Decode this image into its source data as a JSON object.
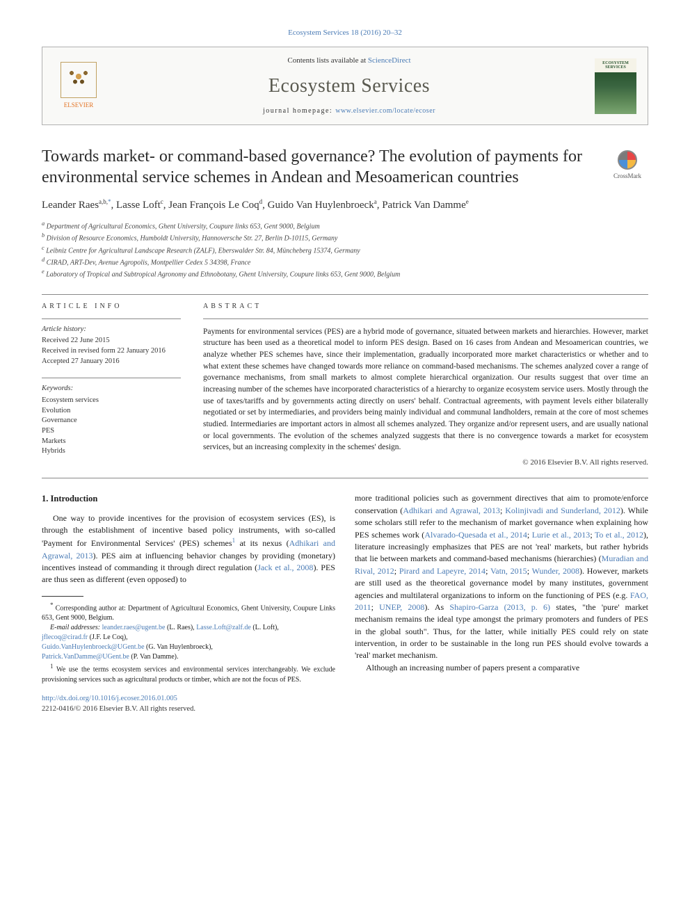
{
  "header": {
    "top_link": "Ecosystem Services 18 (2016) 20–32",
    "contents_prefix": "Contents lists available at ",
    "contents_link": "ScienceDirect",
    "journal_name": "Ecosystem Services",
    "homepage_prefix": "journal homepage: ",
    "homepage_url": "www.elsevier.com/locate/ecoser",
    "elsevier_label": "ELSEVIER",
    "cover_label": "ECOSYSTEM SERVICES"
  },
  "article": {
    "title": "Towards market- or command-based governance? The evolution of payments for environmental service schemes in Andean and Mesoamerican countries",
    "crossmark_label": "CrossMark"
  },
  "authors": {
    "a1": {
      "name": "Leander Raes",
      "sup": "a,b,",
      "corr": "*"
    },
    "a2": {
      "name": "Lasse Loft",
      "sup": "c"
    },
    "a3": {
      "name": "Jean François Le Coq",
      "sup": "d"
    },
    "a4": {
      "name": "Guido Van Huylenbroeck",
      "sup": "a"
    },
    "a5": {
      "name": "Patrick Van Damme",
      "sup": "e"
    }
  },
  "affiliations": {
    "a": "Department of Agricultural Economics, Ghent University, Coupure links 653, Gent 9000, Belgium",
    "b": "Division of Resource Economics, Humboldt University, Hannoversche Str. 27, Berlin D-10115, Germany",
    "c": "Leibniz Centre for Agricultural Landscape Research (ZALF), Eberswalder Str. 84, Müncheberg 15374, Germany",
    "d": "CIRAD, ART-Dev, Avenue Agropolis, Montpellier Cedex 5 34398, France",
    "e": "Laboratory of Tropical and Subtropical Agronomy and Ethnobotany, Ghent University, Coupure links 653, Gent 9000, Belgium"
  },
  "info": {
    "section_label": "ARTICLE INFO",
    "history_heading": "Article history:",
    "received": "Received 22 June 2015",
    "revised": "Received in revised form 22 January 2016",
    "accepted": "Accepted 27 January 2016",
    "keywords_heading": "Keywords:",
    "keywords": [
      "Ecosystem services",
      "Evolution",
      "Governance",
      "PES",
      "Markets",
      "Hybrids"
    ]
  },
  "abstract": {
    "label": "ABSTRACT",
    "text": "Payments for environmental services (PES) are a hybrid mode of governance, situated between markets and hierarchies. However, market structure has been used as a theoretical model to inform PES design. Based on 16 cases from Andean and Mesoamerican countries, we analyze whether PES schemes have, since their implementation, gradually incorporated more market characteristics or whether and to what extent these schemes have changed towards more reliance on command-based mechanisms. The schemes analyzed cover a range of governance mechanisms, from small markets to almost complete hierarchical organization. Our results suggest that over time an increasing number of the schemes have incorporated characteristics of a hierarchy to organize ecosystem service users. Mostly through the use of taxes/tariffs and by governments acting directly on users' behalf. Contractual agreements, with payment levels either bilaterally negotiated or set by intermediaries, and providers being mainly individual and communal landholders, remain at the core of most schemes studied. Intermediaries are important actors in almost all schemes analyzed. They organize and/or represent users, and are usually national or local governments. The evolution of the schemes analyzed suggests that there is no convergence towards a market for ecosystem services, but an increasing complexity in the schemes' design.",
    "copyright": "© 2016 Elsevier B.V. All rights reserved."
  },
  "intro": {
    "heading": "1. Introduction",
    "p1_a": "One way to provide incentives for the provision of ecosystem services (ES), is through the establishment of incentive based policy instruments, with so-called 'Payment for Environmental Services' (PES) schemes",
    "p1_sup": "1",
    "p1_b": " at its nexus (",
    "p1_ref1": "Adhikari and Agrawal, 2013",
    "p1_c": "). PES aim at influencing behavior changes by providing (monetary) incentives instead of commanding it through direct regulation (",
    "p1_ref2": "Jack et al., 2008",
    "p1_d": "). PES are thus seen as different (even opposed) to",
    "p2_a": "more traditional policies such as government directives that aim to promote/enforce conservation (",
    "p2_ref1": "Adhikari and Agrawal, 2013",
    "p2_b": "; ",
    "p2_ref2": "Kolinjivadi and Sunderland, 2012",
    "p2_c": "). While some scholars still refer to the mechanism of market governance when explaining how PES schemes work (",
    "p2_ref3": "Alvarado-Quesada et al., 2014",
    "p2_d": "; ",
    "p2_ref4": "Lurie et al., 2013",
    "p2_e": "; ",
    "p2_ref5": "To et al., 2012",
    "p2_f": "), literature increasingly emphasizes that PES are not 'real' markets, but rather hybrids that lie between markets and command-based mechanisms (hierarchies) (",
    "p2_ref6": "Muradian and Rival, 2012",
    "p2_g": "; ",
    "p2_ref7": "Pirard and Lapeyre, 2014",
    "p2_h": "; ",
    "p2_ref8": "Vatn, 2015",
    "p2_i": "; ",
    "p2_ref9": "Wunder, 2008",
    "p2_j": "). However, markets are still used as the theoretical governance model by many institutes, government agencies and multilateral organizations to inform on the functioning of PES (e.g. ",
    "p2_ref10": "FAO, 2011",
    "p2_k": "; ",
    "p2_ref11": "UNEP, 2008",
    "p2_l": "). As ",
    "p2_ref12": "Shapiro-Garza (2013, p. 6)",
    "p2_m": " states, \"the 'pure' market mechanism remains the ideal type amongst the primary promoters and funders of PES in the global south\". Thus, for the latter, while initially PES could rely on state intervention, in order to be sustainable in the long run PES should evolve towards a 'real' market mechanism.",
    "p3": "Although an increasing number of papers present a comparative"
  },
  "footnotes": {
    "corr_sym": "*",
    "corr_text": "Corresponding author at: Department of Agricultural Economics, Ghent University, Coupure Links 653, Gent 9000, Belgium.",
    "email_label": "E-mail addresses: ",
    "emails": {
      "e1": "leander.raes@ugent.be",
      "n1": " (L. Raes), ",
      "e2": "Lasse.Loft@zalf.de",
      "n2": " (L. Loft), ",
      "e3": "jflecoq@cirad.fr",
      "n3": " (J.F. Le Coq),",
      "e4": "Guido.VanHuylenbroeck@UGent.be",
      "n4": " (G. Van Huylenbroeck),",
      "e5": "Patrick.VanDamme@UGent.be",
      "n5": " (P. Van Damme)."
    },
    "fn1_sup": "1",
    "fn1_text": " We use the terms ecosystem services and environmental services interchangeably. We exclude provisioning services such as agricultural products or timber, which are not the focus of PES."
  },
  "footer": {
    "doi": "http://dx.doi.org/10.1016/j.ecoser.2016.01.005",
    "issn": "2212-0416/© 2016 Elsevier B.V. All rights reserved."
  },
  "colors": {
    "link": "#4a7bb5",
    "text": "#1a1a1a",
    "journal_title": "#5a5a50",
    "elsevier": "#e37222"
  },
  "typography": {
    "title_fontsize": 24,
    "journal_fontsize": 28,
    "body_fontsize": 12,
    "abstract_fontsize": 11.5,
    "footnote_fontsize": 10
  }
}
